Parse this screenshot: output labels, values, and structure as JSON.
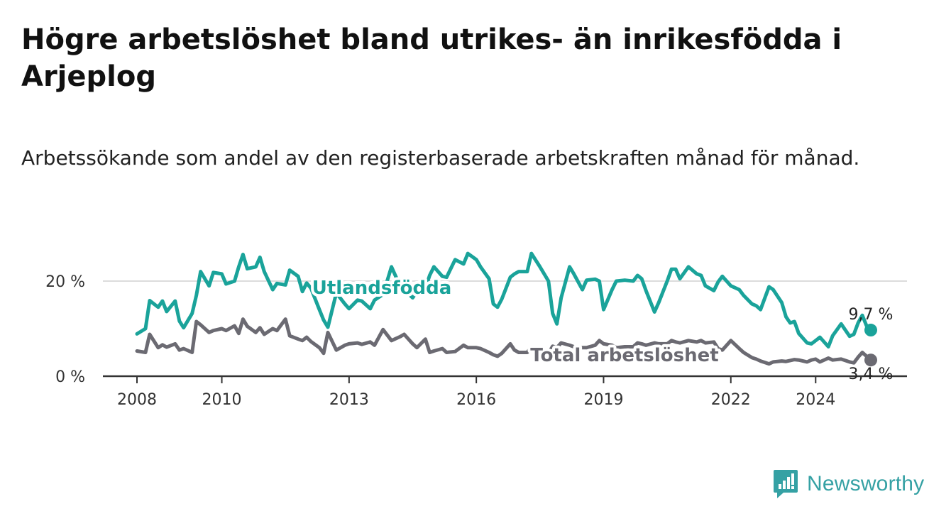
{
  "header": {
    "title": "Högre arbetslöshet bland utrikes- än inrikesfödda i Arjeplog",
    "subtitle": "Arbetssökande som andel av den registerbaserade arbetskraften månad för månad."
  },
  "brand": {
    "name": "Newsworthy",
    "icon": "bar-chart-logo-icon",
    "color": "#35a1a4"
  },
  "chart_data": {
    "type": "line",
    "title": "Högre arbetslöshet bland utrikes- än inrikesfödda i Arjeplog",
    "subtitle": "Arbetssökande som andel av den registerbaserade arbetskraften månad för månad.",
    "xlabel": "",
    "ylabel": "",
    "xlim": [
      2008,
      2025.4
    ],
    "ylim": [
      0,
      25
    ],
    "x_ticks": [
      {
        "value": 2008,
        "label": "2008"
      },
      {
        "value": 2010,
        "label": "2010"
      },
      {
        "value": 2013,
        "label": "2013"
      },
      {
        "value": 2016,
        "label": "2016"
      },
      {
        "value": 2019,
        "label": "2019"
      },
      {
        "value": 2022,
        "label": "2022"
      },
      {
        "value": 2024,
        "label": "2024"
      }
    ],
    "y_ticks": [
      {
        "value": 0,
        "label": "0 %"
      },
      {
        "value": 20,
        "label": "20 %"
      }
    ],
    "grid": true,
    "legend": "direct labels on lines",
    "series": [
      {
        "name": "Utlandsfödda",
        "color": "#1aa39a",
        "end_label": "9,7 %",
        "points": [
          [
            2008.0,
            8.9
          ],
          [
            2008.2,
            10.0
          ],
          [
            2008.3,
            15.9
          ],
          [
            2008.5,
            14.5
          ],
          [
            2008.6,
            15.8
          ],
          [
            2008.7,
            13.6
          ],
          [
            2008.9,
            15.8
          ],
          [
            2009.0,
            11.6
          ],
          [
            2009.1,
            10.2
          ],
          [
            2009.3,
            13.2
          ],
          [
            2009.4,
            17.0
          ],
          [
            2009.5,
            22.0
          ],
          [
            2009.7,
            19.0
          ],
          [
            2009.8,
            21.8
          ],
          [
            2010.0,
            21.5
          ],
          [
            2010.1,
            19.4
          ],
          [
            2010.3,
            20.0
          ],
          [
            2010.4,
            23.0
          ],
          [
            2010.5,
            25.6
          ],
          [
            2010.6,
            22.6
          ],
          [
            2010.8,
            23.0
          ],
          [
            2010.9,
            25.0
          ],
          [
            2011.0,
            22.0
          ],
          [
            2011.2,
            18.2
          ],
          [
            2011.3,
            19.5
          ],
          [
            2011.5,
            19.2
          ],
          [
            2011.6,
            22.3
          ],
          [
            2011.8,
            21.0
          ],
          [
            2011.9,
            17.8
          ],
          [
            2012.0,
            19.6
          ],
          [
            2012.1,
            18.5
          ],
          [
            2012.3,
            14.0
          ],
          [
            2012.4,
            11.8
          ],
          [
            2012.5,
            10.3
          ],
          [
            2012.7,
            17.5
          ],
          [
            2012.9,
            15.2
          ],
          [
            2013.0,
            14.2
          ],
          [
            2013.2,
            16.0
          ],
          [
            2013.3,
            15.8
          ],
          [
            2013.5,
            14.2
          ],
          [
            2013.6,
            16.0
          ],
          [
            2013.8,
            17.2
          ],
          [
            2014.0,
            23.0
          ],
          [
            2014.2,
            19.0
          ],
          [
            2014.3,
            18.2
          ],
          [
            2014.5,
            16.5
          ],
          [
            2014.6,
            17.8
          ],
          [
            2014.8,
            18.5
          ],
          [
            2014.9,
            21.2
          ],
          [
            2015.0,
            23.0
          ],
          [
            2015.2,
            21.0
          ],
          [
            2015.3,
            20.8
          ],
          [
            2015.5,
            24.5
          ],
          [
            2015.7,
            23.6
          ],
          [
            2015.8,
            25.8
          ],
          [
            2016.0,
            24.5
          ],
          [
            2016.1,
            23.0
          ],
          [
            2016.3,
            20.5
          ],
          [
            2016.4,
            15.2
          ],
          [
            2016.5,
            14.5
          ],
          [
            2016.6,
            16.2
          ],
          [
            2016.8,
            20.8
          ],
          [
            2016.9,
            21.5
          ],
          [
            2017.0,
            22.0
          ],
          [
            2017.2,
            22.0
          ],
          [
            2017.3,
            25.8
          ],
          [
            2017.5,
            23.0
          ],
          [
            2017.7,
            20.0
          ],
          [
            2017.8,
            13.2
          ],
          [
            2017.9,
            11.0
          ],
          [
            2018.0,
            16.5
          ],
          [
            2018.2,
            23.0
          ],
          [
            2018.3,
            21.5
          ],
          [
            2018.5,
            18.2
          ],
          [
            2018.6,
            20.2
          ],
          [
            2018.8,
            20.4
          ],
          [
            2018.9,
            20.0
          ],
          [
            2019.0,
            14.0
          ],
          [
            2019.2,
            18.2
          ],
          [
            2019.3,
            20.0
          ],
          [
            2019.5,
            20.2
          ],
          [
            2019.7,
            20.0
          ],
          [
            2019.8,
            21.2
          ],
          [
            2019.9,
            20.5
          ],
          [
            2020.0,
            18.0
          ],
          [
            2020.2,
            13.5
          ],
          [
            2020.3,
            15.5
          ],
          [
            2020.5,
            20.0
          ],
          [
            2020.6,
            22.5
          ],
          [
            2020.7,
            22.5
          ],
          [
            2020.8,
            20.5
          ],
          [
            2021.0,
            23.0
          ],
          [
            2021.2,
            21.5
          ],
          [
            2021.3,
            21.2
          ],
          [
            2021.4,
            19.0
          ],
          [
            2021.6,
            18.0
          ],
          [
            2021.7,
            19.8
          ],
          [
            2021.8,
            21.0
          ],
          [
            2022.0,
            19.0
          ],
          [
            2022.2,
            18.2
          ],
          [
            2022.3,
            17.0
          ],
          [
            2022.5,
            15.2
          ],
          [
            2022.6,
            14.8
          ],
          [
            2022.7,
            14.0
          ],
          [
            2022.9,
            18.8
          ],
          [
            2023.0,
            18.2
          ],
          [
            2023.2,
            15.5
          ],
          [
            2023.3,
            12.5
          ],
          [
            2023.4,
            11.2
          ],
          [
            2023.5,
            11.5
          ],
          [
            2023.6,
            9.0
          ],
          [
            2023.8,
            7.0
          ],
          [
            2023.9,
            6.8
          ],
          [
            2024.0,
            7.5
          ],
          [
            2024.1,
            8.2
          ],
          [
            2024.3,
            6.2
          ],
          [
            2024.4,
            8.5
          ],
          [
            2024.6,
            11.0
          ],
          [
            2024.8,
            8.4
          ],
          [
            2024.9,
            8.8
          ],
          [
            2025.0,
            11.2
          ],
          [
            2025.1,
            12.8
          ],
          [
            2025.2,
            10.6
          ],
          [
            2025.3,
            9.7
          ]
        ]
      },
      {
        "name": "Total arbetslöshet",
        "color": "#6b6a72",
        "end_label": "3,4 %",
        "points": [
          [
            2008.0,
            5.3
          ],
          [
            2008.2,
            5.0
          ],
          [
            2008.3,
            8.8
          ],
          [
            2008.5,
            6.0
          ],
          [
            2008.6,
            6.6
          ],
          [
            2008.7,
            6.1
          ],
          [
            2008.9,
            6.8
          ],
          [
            2009.0,
            5.5
          ],
          [
            2009.1,
            5.8
          ],
          [
            2009.3,
            5.0
          ],
          [
            2009.4,
            11.5
          ],
          [
            2009.5,
            10.8
          ],
          [
            2009.7,
            9.2
          ],
          [
            2009.8,
            9.6
          ],
          [
            2010.0,
            10.0
          ],
          [
            2010.1,
            9.6
          ],
          [
            2010.3,
            10.6
          ],
          [
            2010.4,
            9.0
          ],
          [
            2010.5,
            12.0
          ],
          [
            2010.6,
            10.5
          ],
          [
            2010.8,
            9.2
          ],
          [
            2010.9,
            10.2
          ],
          [
            2011.0,
            8.8
          ],
          [
            2011.2,
            10.0
          ],
          [
            2011.3,
            9.6
          ],
          [
            2011.5,
            12.0
          ],
          [
            2011.6,
            8.5
          ],
          [
            2011.8,
            7.8
          ],
          [
            2011.9,
            7.5
          ],
          [
            2012.0,
            8.2
          ],
          [
            2012.1,
            7.3
          ],
          [
            2012.3,
            6.0
          ],
          [
            2012.4,
            4.8
          ],
          [
            2012.5,
            9.2
          ],
          [
            2012.7,
            5.5
          ],
          [
            2012.9,
            6.5
          ],
          [
            2013.0,
            6.8
          ],
          [
            2013.2,
            7.0
          ],
          [
            2013.3,
            6.7
          ],
          [
            2013.5,
            7.2
          ],
          [
            2013.6,
            6.5
          ],
          [
            2013.8,
            9.8
          ],
          [
            2014.0,
            7.5
          ],
          [
            2014.2,
            8.3
          ],
          [
            2014.3,
            8.8
          ],
          [
            2014.5,
            6.8
          ],
          [
            2014.6,
            6.0
          ],
          [
            2014.8,
            7.8
          ],
          [
            2014.9,
            5.0
          ],
          [
            2015.0,
            5.3
          ],
          [
            2015.2,
            5.8
          ],
          [
            2015.3,
            5.0
          ],
          [
            2015.5,
            5.2
          ],
          [
            2015.7,
            6.5
          ],
          [
            2015.8,
            6.0
          ],
          [
            2016.0,
            6.0
          ],
          [
            2016.1,
            5.8
          ],
          [
            2016.3,
            5.0
          ],
          [
            2016.4,
            4.5
          ],
          [
            2016.5,
            4.2
          ],
          [
            2016.6,
            4.8
          ],
          [
            2016.8,
            6.8
          ],
          [
            2016.9,
            5.5
          ],
          [
            2017.0,
            5.0
          ],
          [
            2017.2,
            5.0
          ],
          [
            2017.3,
            6.2
          ],
          [
            2017.5,
            5.5
          ],
          [
            2017.7,
            4.8
          ],
          [
            2017.8,
            6.3
          ],
          [
            2017.9,
            6.0
          ],
          [
            2018.0,
            7.0
          ],
          [
            2018.2,
            6.5
          ],
          [
            2018.3,
            6.2
          ],
          [
            2018.5,
            6.0
          ],
          [
            2018.6,
            6.0
          ],
          [
            2018.8,
            6.5
          ],
          [
            2018.9,
            7.5
          ],
          [
            2019.0,
            6.8
          ],
          [
            2019.2,
            6.5
          ],
          [
            2019.3,
            6.0
          ],
          [
            2019.5,
            6.2
          ],
          [
            2019.7,
            6.2
          ],
          [
            2019.8,
            7.0
          ],
          [
            2019.9,
            6.8
          ],
          [
            2020.0,
            6.5
          ],
          [
            2020.2,
            7.0
          ],
          [
            2020.3,
            6.8
          ],
          [
            2020.5,
            6.8
          ],
          [
            2020.6,
            7.5
          ],
          [
            2020.7,
            7.2
          ],
          [
            2020.8,
            7.0
          ],
          [
            2021.0,
            7.5
          ],
          [
            2021.2,
            7.2
          ],
          [
            2021.3,
            7.5
          ],
          [
            2021.4,
            7.0
          ],
          [
            2021.6,
            7.2
          ],
          [
            2021.7,
            5.8
          ],
          [
            2021.8,
            5.5
          ],
          [
            2022.0,
            7.5
          ],
          [
            2022.2,
            5.8
          ],
          [
            2022.3,
            5.0
          ],
          [
            2022.5,
            3.9
          ],
          [
            2022.6,
            3.6
          ],
          [
            2022.7,
            3.2
          ],
          [
            2022.9,
            2.6
          ],
          [
            2023.0,
            3.0
          ],
          [
            2023.2,
            3.2
          ],
          [
            2023.3,
            3.1
          ],
          [
            2023.4,
            3.3
          ],
          [
            2023.5,
            3.5
          ],
          [
            2023.6,
            3.4
          ],
          [
            2023.8,
            3.0
          ],
          [
            2023.9,
            3.4
          ],
          [
            2024.0,
            3.6
          ],
          [
            2024.1,
            3.0
          ],
          [
            2024.3,
            3.8
          ],
          [
            2024.4,
            3.4
          ],
          [
            2024.6,
            3.6
          ],
          [
            2024.8,
            3.0
          ],
          [
            2024.9,
            2.8
          ],
          [
            2025.0,
            4.0
          ],
          [
            2025.1,
            5.0
          ],
          [
            2025.2,
            4.2
          ],
          [
            2025.3,
            3.4
          ]
        ]
      }
    ]
  }
}
